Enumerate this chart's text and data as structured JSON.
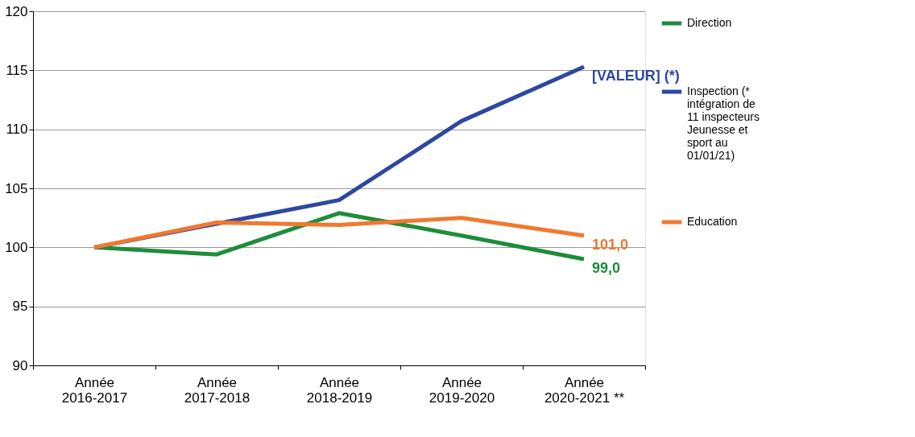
{
  "chart_data": {
    "type": "line",
    "categories": [
      "Année 2016-2017",
      "Année 2017-2018",
      "Année 2018-2019",
      "Année 2019-2020",
      "Année 2020-2021 **"
    ],
    "series": [
      {
        "name": "Direction",
        "color": "#1e8c3a",
        "values": [
          100,
          99.4,
          102.9,
          101.0,
          99.0
        ],
        "value_labels": [
          null,
          null,
          null,
          null,
          "99,0"
        ]
      },
      {
        "name": "Inspection (* intégration de 11 inspecteurs Jeunesse et sport au 01/01/21)",
        "color": "#2e48a0",
        "values": [
          100,
          102.0,
          104.0,
          110.7,
          115.3
        ],
        "value_labels": [
          null,
          null,
          null,
          null,
          "[VALEUR] (*)"
        ]
      },
      {
        "name": "Education",
        "color": "#f07830",
        "values": [
          100,
          102.1,
          101.9,
          102.5,
          101.0
        ],
        "value_labels": [
          null,
          null,
          null,
          null,
          "101,0"
        ]
      }
    ],
    "ylim": [
      90,
      120
    ],
    "yticks": [
      90,
      95,
      100,
      105,
      110,
      115,
      120
    ],
    "grid": "y",
    "legend": "right",
    "marker": "none",
    "line_style": "solid"
  }
}
